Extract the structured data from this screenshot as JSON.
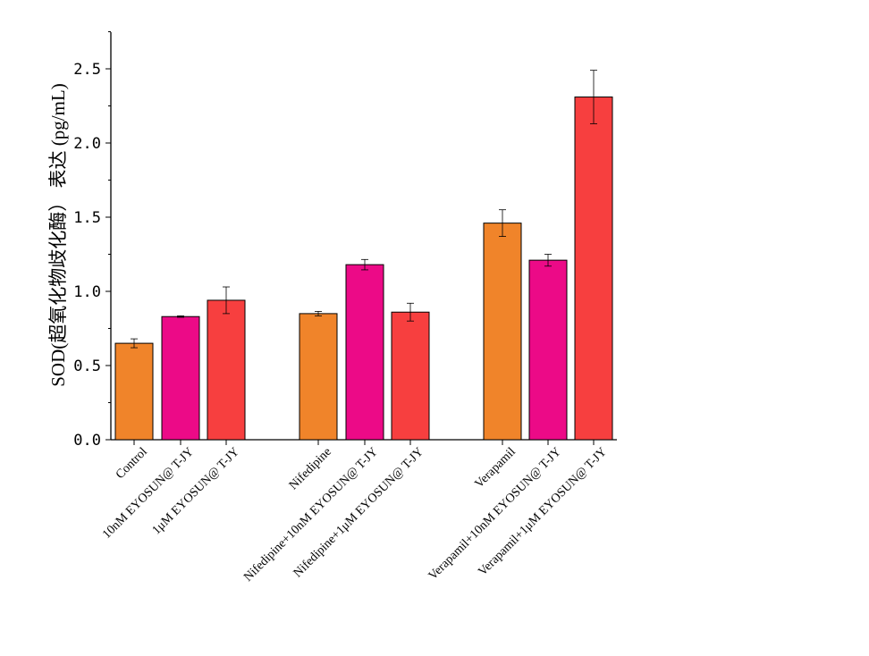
{
  "chart_data": {
    "type": "bar",
    "title": "",
    "xlabel": "",
    "ylabel": "SOD(超氧化物歧化酶） 表达 (pg/mL)",
    "ylim": [
      0,
      2.75
    ],
    "yticks": [
      "0.0",
      "0.5",
      "1.0",
      "1.5",
      "2.0",
      "2.5"
    ],
    "ytick_values": [
      0,
      0.5,
      1.0,
      1.5,
      2.0,
      2.5
    ],
    "grid": false,
    "categories": [
      "Control",
      "10nM EYOSUN@ T-JY",
      "1μM EYOSUN@ T-JY",
      "Nifedipine",
      "Nifedipine+10nM EYOSUN@ T-JY",
      "Nifedipine+1μM EYOSUN@ T-JY",
      "Verapamil",
      "Verapamil+10nM EYOSUN@ T-JY",
      "Verapamil+1μM EYOSUN@ T-JY"
    ],
    "values": [
      0.65,
      0.83,
      0.94,
      0.85,
      1.18,
      0.86,
      1.46,
      1.21,
      2.31
    ],
    "errors": [
      0.03,
      0.005,
      0.09,
      0.015,
      0.035,
      0.06,
      0.09,
      0.04,
      0.18
    ],
    "colors": [
      "#F0842A",
      "#EC0A87",
      "#F73F3F",
      "#F0842A",
      "#EC0A87",
      "#F73F3F",
      "#F0842A",
      "#EC0A87",
      "#F73F3F"
    ]
  }
}
